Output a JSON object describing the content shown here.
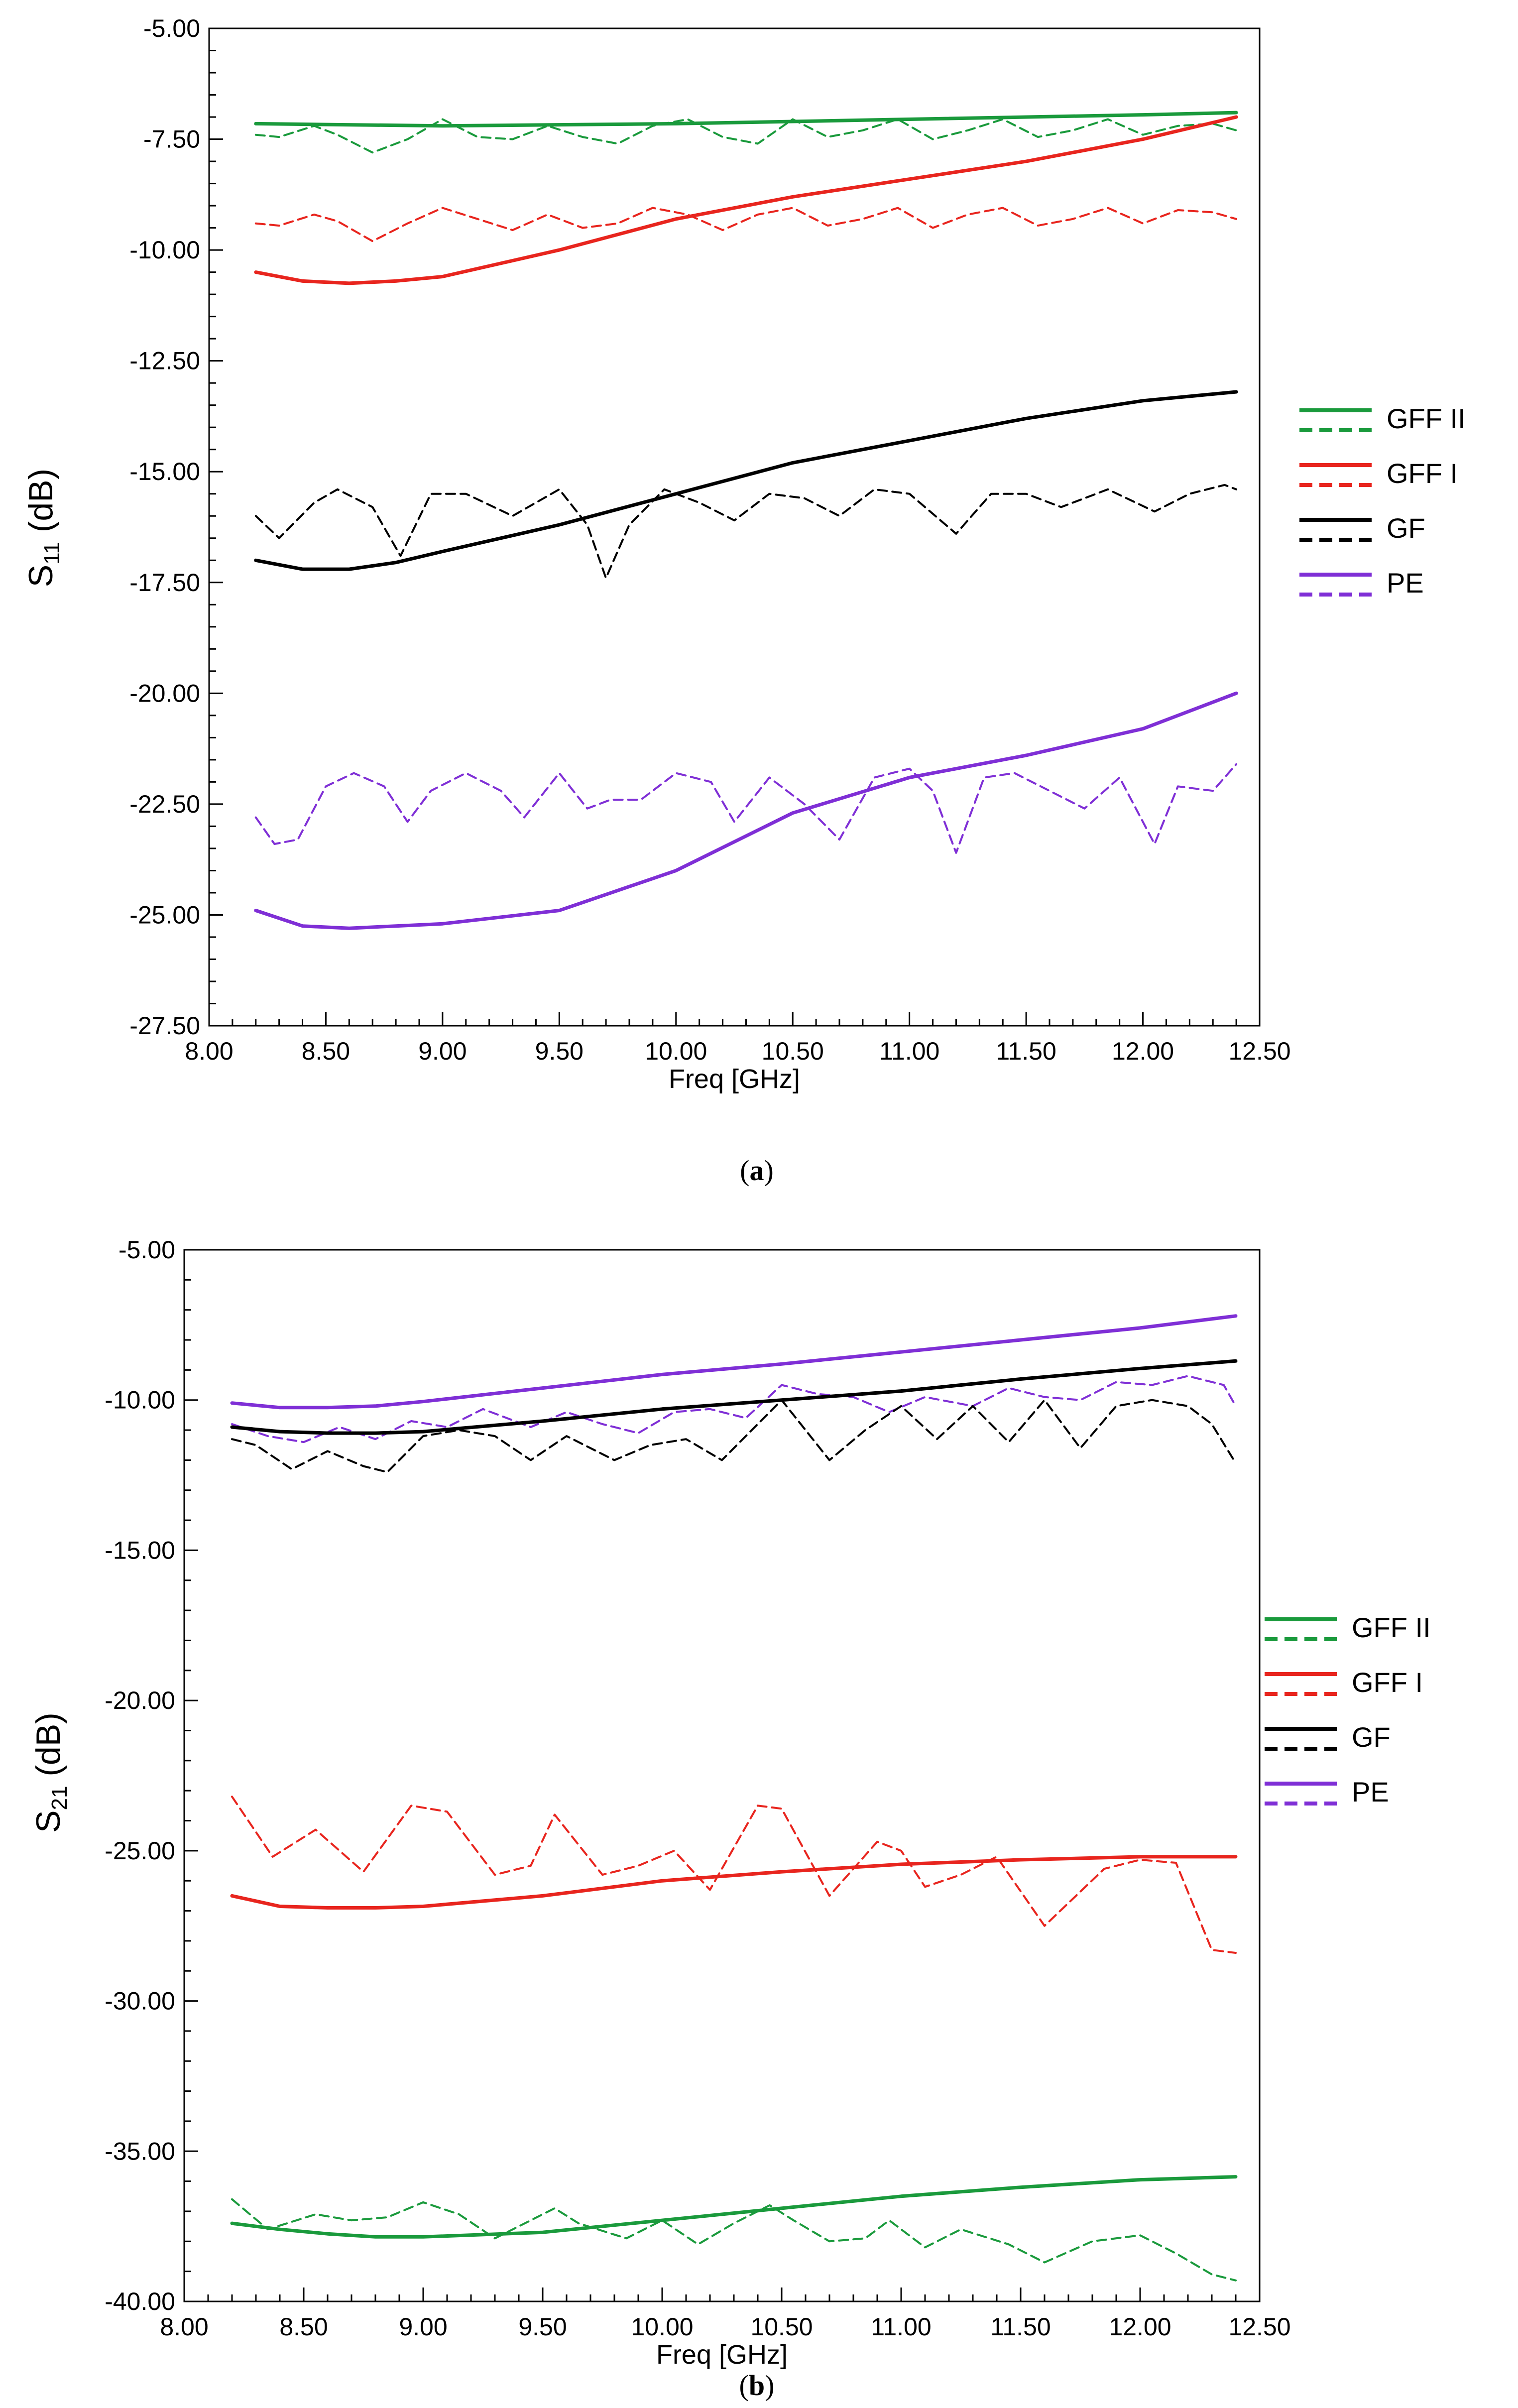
{
  "chart_data": [
    {
      "type": "line",
      "id": "a",
      "caption": {
        "open": "(",
        "letter": "a",
        "close": ")"
      },
      "xlabel": "Freq [GHz]",
      "ylabel": {
        "main": "S",
        "sub": "11",
        "unit": " (dB)"
      },
      "xlim": [
        8.0,
        12.5
      ],
      "ylim": [
        -27.5,
        -5.0
      ],
      "xticks": [
        "8.00",
        "8.50",
        "9.00",
        "9.50",
        "10.00",
        "10.50",
        "11.00",
        "11.50",
        "12.00",
        "12.50"
      ],
      "yticks": [
        "-5.00",
        "-7.50",
        "-10.00",
        "-12.50",
        "-15.00",
        "-17.50",
        "-20.00",
        "-22.50",
        "-25.00",
        "-27.50"
      ],
      "legend": [
        {
          "label": "GFF II",
          "color": "#1a9a3c"
        },
        {
          "label": "GFF I",
          "color": "#e8251e"
        },
        {
          "label": "GF",
          "color": "#000000"
        },
        {
          "label": "PE",
          "color": "#7f2fd6"
        }
      ],
      "series": [
        {
          "name": "GFF II",
          "style": "solid",
          "color": "#1a9a3c",
          "x": [
            8.2,
            9.0,
            10.0,
            11.0,
            12.0,
            12.4
          ],
          "y": [
            -7.15,
            -7.2,
            -7.15,
            -7.05,
            -6.95,
            -6.9
          ]
        },
        {
          "name": "GFF II",
          "style": "dashed",
          "color": "#1a9a3c",
          "x": [
            8.2,
            8.3,
            8.45,
            8.55,
            8.7,
            8.85,
            9.0,
            9.15,
            9.3,
            9.45,
            9.6,
            9.75,
            9.9,
            10.05,
            10.2,
            10.35,
            10.5,
            10.65,
            10.8,
            10.95,
            11.1,
            11.25,
            11.4,
            11.55,
            11.7,
            11.85,
            12.0,
            12.15,
            12.3,
            12.4
          ],
          "y": [
            -7.4,
            -7.45,
            -7.2,
            -7.4,
            -7.8,
            -7.5,
            -7.05,
            -7.45,
            -7.5,
            -7.2,
            -7.45,
            -7.6,
            -7.2,
            -7.05,
            -7.45,
            -7.6,
            -7.05,
            -7.45,
            -7.3,
            -7.05,
            -7.5,
            -7.3,
            -7.05,
            -7.45,
            -7.3,
            -7.05,
            -7.4,
            -7.2,
            -7.15,
            -7.3
          ]
        },
        {
          "name": "GFF I",
          "style": "solid",
          "color": "#e8251e",
          "x": [
            8.2,
            8.4,
            8.6,
            8.8,
            9.0,
            9.5,
            10.0,
            10.5,
            11.0,
            11.5,
            12.0,
            12.4
          ],
          "y": [
            -10.5,
            -10.7,
            -10.75,
            -10.7,
            -10.6,
            -10.0,
            -9.3,
            -8.8,
            -8.4,
            -8.0,
            -7.5,
            -7.0
          ]
        },
        {
          "name": "GFF I",
          "style": "dashed",
          "color": "#e8251e",
          "x": [
            8.2,
            8.3,
            8.45,
            8.55,
            8.7,
            8.85,
            9.0,
            9.15,
            9.3,
            9.45,
            9.6,
            9.75,
            9.9,
            10.05,
            10.2,
            10.35,
            10.5,
            10.65,
            10.8,
            10.95,
            11.1,
            11.25,
            11.4,
            11.55,
            11.7,
            11.85,
            12.0,
            12.15,
            12.3,
            12.4
          ],
          "y": [
            -9.4,
            -9.45,
            -9.2,
            -9.35,
            -9.8,
            -9.4,
            -9.05,
            -9.3,
            -9.55,
            -9.2,
            -9.5,
            -9.4,
            -9.05,
            -9.2,
            -9.55,
            -9.2,
            -9.05,
            -9.45,
            -9.3,
            -9.05,
            -9.5,
            -9.2,
            -9.05,
            -9.45,
            -9.3,
            -9.05,
            -9.4,
            -9.1,
            -9.15,
            -9.3
          ]
        },
        {
          "name": "GF",
          "style": "solid",
          "color": "#000000",
          "x": [
            8.2,
            8.4,
            8.6,
            8.8,
            9.0,
            9.5,
            10.0,
            10.5,
            11.0,
            11.5,
            12.0,
            12.4
          ],
          "y": [
            -17.0,
            -17.2,
            -17.2,
            -17.05,
            -16.8,
            -16.2,
            -15.5,
            -14.8,
            -14.3,
            -13.8,
            -13.4,
            -13.2
          ]
        },
        {
          "name": "GF",
          "style": "dashed",
          "color": "#000000",
          "x": [
            8.2,
            8.3,
            8.45,
            8.55,
            8.7,
            8.82,
            8.95,
            9.1,
            9.3,
            9.5,
            9.62,
            9.7,
            9.8,
            9.95,
            10.1,
            10.25,
            10.4,
            10.55,
            10.7,
            10.85,
            11.0,
            11.2,
            11.35,
            11.5,
            11.65,
            11.85,
            12.05,
            12.2,
            12.35,
            12.4
          ],
          "y": [
            -16.0,
            -16.5,
            -15.7,
            -15.4,
            -15.8,
            -16.9,
            -15.5,
            -15.5,
            -16.0,
            -15.4,
            -16.2,
            -17.4,
            -16.2,
            -15.4,
            -15.7,
            -16.1,
            -15.5,
            -15.6,
            -16.0,
            -15.4,
            -15.5,
            -16.4,
            -15.5,
            -15.5,
            -15.8,
            -15.4,
            -15.9,
            -15.5,
            -15.3,
            -15.4
          ]
        },
        {
          "name": "PE",
          "style": "solid",
          "color": "#7f2fd6",
          "x": [
            8.2,
            8.4,
            8.6,
            8.8,
            9.0,
            9.5,
            10.0,
            10.5,
            11.0,
            11.5,
            12.0,
            12.4
          ],
          "y": [
            -24.9,
            -25.25,
            -25.3,
            -25.25,
            -25.2,
            -24.9,
            -24.0,
            -22.7,
            -21.9,
            -21.4,
            -20.8,
            -20.0
          ]
        },
        {
          "name": "PE",
          "style": "dashed",
          "color": "#7f2fd6",
          "x": [
            8.2,
            8.28,
            8.38,
            8.5,
            8.62,
            8.75,
            8.85,
            8.95,
            9.1,
            9.25,
            9.35,
            9.5,
            9.62,
            9.72,
            9.85,
            10.0,
            10.15,
            10.25,
            10.4,
            10.55,
            10.7,
            10.85,
            11.0,
            11.1,
            11.2,
            11.32,
            11.45,
            11.6,
            11.75,
            11.9,
            12.05,
            12.15,
            12.3,
            12.4
          ],
          "y": [
            -22.8,
            -23.4,
            -23.3,
            -22.1,
            -21.8,
            -22.1,
            -22.9,
            -22.2,
            -21.8,
            -22.2,
            -22.8,
            -21.8,
            -22.6,
            -22.4,
            -22.4,
            -21.8,
            -22.0,
            -22.9,
            -21.9,
            -22.5,
            -23.3,
            -21.9,
            -21.7,
            -22.2,
            -23.6,
            -21.9,
            -21.8,
            -22.2,
            -22.6,
            -21.9,
            -23.4,
            -22.1,
            -22.2,
            -21.6
          ]
        }
      ]
    },
    {
      "type": "line",
      "id": "b",
      "caption": {
        "open": "(",
        "letter": "b",
        "close": ")"
      },
      "xlabel": "Freq [GHz]",
      "ylabel": {
        "main": "S",
        "sub": "21",
        "unit": " (dB)"
      },
      "xlim": [
        8.0,
        12.5
      ],
      "ylim": [
        -40.0,
        -5.0
      ],
      "xticks": [
        "8.00",
        "8.50",
        "9.00",
        "9.50",
        "10.00",
        "10.50",
        "11.00",
        "11.50",
        "12.00",
        "12.50"
      ],
      "yticks": [
        "-5.00",
        "-10.00",
        "-15.00",
        "-20.00",
        "-25.00",
        "-30.00",
        "-35.00",
        "-40.00"
      ],
      "legend": [
        {
          "label": "GFF II",
          "color": "#1a9a3c"
        },
        {
          "label": "GFF I",
          "color": "#e8251e"
        },
        {
          "label": "GF",
          "color": "#000000"
        },
        {
          "label": "PE",
          "color": "#7f2fd6"
        }
      ],
      "series": [
        {
          "name": "PE",
          "style": "solid",
          "color": "#7f2fd6",
          "x": [
            8.2,
            8.4,
            8.6,
            8.8,
            9.0,
            9.5,
            10.0,
            10.5,
            11.0,
            11.5,
            12.0,
            12.4
          ],
          "y": [
            -10.1,
            -10.25,
            -10.25,
            -10.2,
            -10.05,
            -9.6,
            -9.15,
            -8.8,
            -8.4,
            -8.0,
            -7.6,
            -7.2
          ]
        },
        {
          "name": "PE",
          "style": "dashed",
          "color": "#7f2fd6",
          "x": [
            8.2,
            8.35,
            8.5,
            8.65,
            8.8,
            8.95,
            9.1,
            9.25,
            9.45,
            9.6,
            9.75,
            9.9,
            10.05,
            10.2,
            10.35,
            10.5,
            10.65,
            10.8,
            10.95,
            11.1,
            11.3,
            11.45,
            11.6,
            11.75,
            11.9,
            12.05,
            12.2,
            12.35,
            12.4
          ],
          "y": [
            -10.8,
            -11.2,
            -11.4,
            -10.9,
            -11.3,
            -10.7,
            -10.9,
            -10.3,
            -10.9,
            -10.4,
            -10.8,
            -11.1,
            -10.4,
            -10.3,
            -10.6,
            -9.5,
            -9.8,
            -9.9,
            -10.4,
            -9.9,
            -10.2,
            -9.6,
            -9.9,
            -10.0,
            -9.4,
            -9.5,
            -9.2,
            -9.5,
            -10.2
          ]
        },
        {
          "name": "GF",
          "style": "solid",
          "color": "#000000",
          "x": [
            8.2,
            8.4,
            8.6,
            8.8,
            9.0,
            9.5,
            10.0,
            10.5,
            11.0,
            11.5,
            12.0,
            12.4
          ],
          "y": [
            -10.9,
            -11.05,
            -11.1,
            -11.1,
            -11.05,
            -10.7,
            -10.3,
            -10.0,
            -9.7,
            -9.3,
            -8.95,
            -8.7
          ]
        },
        {
          "name": "GF",
          "style": "dashed",
          "color": "#000000",
          "x": [
            8.2,
            8.3,
            8.45,
            8.6,
            8.75,
            8.85,
            9.0,
            9.15,
            9.3,
            9.45,
            9.6,
            9.8,
            9.95,
            10.1,
            10.25,
            10.5,
            10.7,
            10.85,
            11.0,
            11.15,
            11.3,
            11.45,
            11.6,
            11.75,
            11.9,
            12.05,
            12.2,
            12.3,
            12.4
          ],
          "y": [
            -11.3,
            -11.5,
            -12.3,
            -11.7,
            -12.2,
            -12.4,
            -11.2,
            -11.0,
            -11.2,
            -12.0,
            -11.2,
            -12.0,
            -11.5,
            -11.3,
            -12.0,
            -10.0,
            -12.0,
            -11.0,
            -10.2,
            -11.3,
            -10.2,
            -11.4,
            -10.0,
            -11.6,
            -10.2,
            -10.0,
            -10.2,
            -10.8,
            -12.1
          ]
        },
        {
          "name": "GFF I",
          "style": "solid",
          "color": "#e8251e",
          "x": [
            8.2,
            8.4,
            8.6,
            8.8,
            9.0,
            9.5,
            10.0,
            10.5,
            11.0,
            11.5,
            12.0,
            12.4
          ],
          "y": [
            -26.5,
            -26.85,
            -26.9,
            -26.9,
            -26.85,
            -26.5,
            -26.0,
            -25.7,
            -25.45,
            -25.3,
            -25.2,
            -25.2
          ]
        },
        {
          "name": "GFF I",
          "style": "dashed",
          "color": "#e8251e",
          "x": [
            8.2,
            8.37,
            8.55,
            8.75,
            8.95,
            9.1,
            9.3,
            9.45,
            9.55,
            9.75,
            9.9,
            10.05,
            10.2,
            10.4,
            10.5,
            10.7,
            10.9,
            11.0,
            11.1,
            11.25,
            11.4,
            11.6,
            11.85,
            12.0,
            12.15,
            12.3,
            12.4
          ],
          "y": [
            -23.2,
            -25.2,
            -24.3,
            -25.7,
            -23.5,
            -23.7,
            -25.8,
            -25.5,
            -23.8,
            -25.8,
            -25.5,
            -25.0,
            -26.3,
            -23.5,
            -23.6,
            -26.5,
            -24.7,
            -25.0,
            -26.2,
            -25.8,
            -25.2,
            -27.5,
            -25.6,
            -25.3,
            -25.4,
            -28.3,
            -28.4
          ]
        },
        {
          "name": "GFF II",
          "style": "solid",
          "color": "#1a9a3c",
          "x": [
            8.2,
            8.4,
            8.6,
            8.8,
            9.0,
            9.5,
            10.0,
            10.5,
            11.0,
            11.5,
            12.0,
            12.4
          ],
          "y": [
            -37.4,
            -37.6,
            -37.75,
            -37.85,
            -37.85,
            -37.7,
            -37.3,
            -36.9,
            -36.5,
            -36.2,
            -35.95,
            -35.85
          ]
        },
        {
          "name": "GFF II",
          "style": "dashed",
          "color": "#1a9a3c",
          "x": [
            8.2,
            8.35,
            8.55,
            8.7,
            8.85,
            9.0,
            9.15,
            9.3,
            9.45,
            9.55,
            9.65,
            9.85,
            10.0,
            10.15,
            10.3,
            10.45,
            10.55,
            10.7,
            10.85,
            10.95,
            11.1,
            11.25,
            11.45,
            11.6,
            11.8,
            12.0,
            12.15,
            12.3,
            12.4
          ],
          "y": [
            -36.6,
            -37.6,
            -37.1,
            -37.3,
            -37.2,
            -36.7,
            -37.1,
            -37.9,
            -37.3,
            -36.9,
            -37.4,
            -37.9,
            -37.3,
            -38.1,
            -37.4,
            -36.8,
            -37.3,
            -38.0,
            -37.9,
            -37.3,
            -38.2,
            -37.6,
            -38.1,
            -38.7,
            -38.0,
            -37.8,
            -38.4,
            -39.1,
            -39.3
          ]
        }
      ]
    }
  ]
}
